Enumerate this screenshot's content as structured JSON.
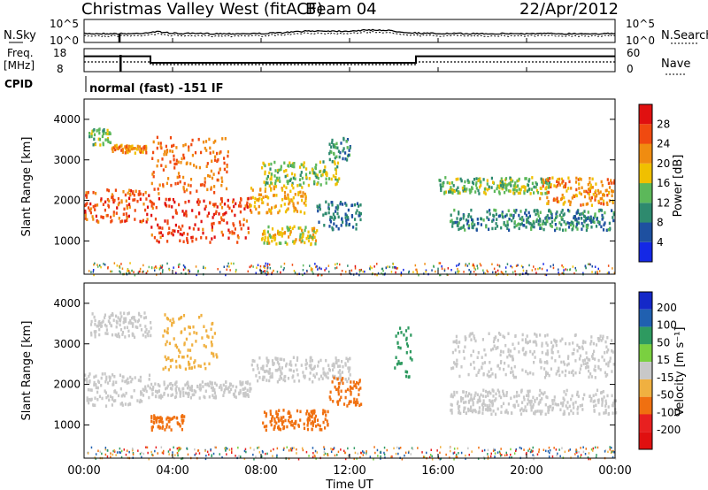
{
  "header": {
    "station": "Christmas Valley West (fitACF)",
    "beam": "Beam 04",
    "date": "22/Apr/2012"
  },
  "sky_panel": {
    "left_label": "N.Sky",
    "right_label": "N.Search",
    "left_ticks": [
      "10^5",
      "10^0"
    ],
    "right_ticks": [
      "10^5",
      "10^0"
    ]
  },
  "freq_panel": {
    "left_label_1": "Freq.",
    "left_label_2": "[MHz]",
    "right_label": "Nave",
    "left_ticks": [
      "18",
      "8"
    ],
    "right_ticks": [
      "60",
      "0"
    ],
    "freq_steps": [
      {
        "t0": 0.0,
        "t1": 1.7,
        "mhz": 15.2
      },
      {
        "t0": 1.7,
        "t1": 3.0,
        "mhz": 15.2
      },
      {
        "t0": 3.0,
        "t1": 15.0,
        "mhz": 11.5
      },
      {
        "t0": 15.0,
        "t1": 24.0,
        "mhz": 15.2
      }
    ]
  },
  "cpid": {
    "label": "CPID",
    "text": "normal (fast) -151 IF"
  },
  "power_panel": {
    "ylabel": "Slant Range [km]",
    "yticks": [
      "1000",
      "2000",
      "3000",
      "4000"
    ],
    "cbar_label": "Power [dB]",
    "cbar_ticks": [
      "4",
      "8",
      "12",
      "16",
      "20",
      "24",
      "28"
    ],
    "cbar_colors": [
      "#1428e6",
      "#1e50a0",
      "#2e8a6e",
      "#5cb85a",
      "#f0c000",
      "#f08c10",
      "#f04a10",
      "#e01010"
    ]
  },
  "velocity_panel": {
    "ylabel": "Slant Range [km]",
    "yticks": [
      "1000",
      "2000",
      "3000",
      "4000"
    ],
    "cbar_label": "Velocity [m s⁻¹]",
    "cbar_ticks": [
      "200",
      "100",
      "50",
      "15",
      "-15",
      "-50",
      "-100",
      "-200"
    ],
    "cbar_colors": [
      "#1428c8",
      "#2060b0",
      "#2e9a60",
      "#7ad040",
      "#c8c8c8",
      "#f0b040",
      "#f07010",
      "#e82020",
      "#e01010"
    ]
  },
  "xaxis": {
    "label": "Time UT",
    "ticks": [
      "00:00",
      "04:00",
      "08:00",
      "12:00",
      "16:00",
      "20:00",
      "00:00"
    ]
  },
  "chart_data": {
    "type": "heatmap",
    "x_range_hours": [
      0,
      24
    ],
    "y_range_km": [
      180,
      4500
    ],
    "power_bands": [
      {
        "t0": 0.0,
        "t1": 3.0,
        "r0": 1500,
        "r1": 2300,
        "db": 26
      },
      {
        "t0": 0.2,
        "t1": 1.2,
        "r0": 3400,
        "r1": 3800,
        "db": 14
      },
      {
        "t0": 1.2,
        "t1": 2.8,
        "r0": 3200,
        "r1": 3400,
        "db": 22
      },
      {
        "t0": 3.0,
        "t1": 7.5,
        "r0": 1000,
        "r1": 2100,
        "db": 27
      },
      {
        "t0": 3.0,
        "t1": 6.5,
        "r0": 2200,
        "r1": 3600,
        "db": 24
      },
      {
        "t0": 7.5,
        "t1": 10.0,
        "r0": 1700,
        "r1": 2400,
        "db": 20
      },
      {
        "t0": 8.0,
        "t1": 11.5,
        "r0": 2400,
        "r1": 3000,
        "db": 15
      },
      {
        "t0": 8.0,
        "t1": 10.5,
        "r0": 950,
        "r1": 1400,
        "db": 18
      },
      {
        "t0": 10.5,
        "t1": 12.5,
        "r0": 1300,
        "r1": 2000,
        "db": 8
      },
      {
        "t0": 11.0,
        "t1": 12.0,
        "r0": 3000,
        "r1": 3600,
        "db": 10
      },
      {
        "t0": 16.0,
        "t1": 21.0,
        "r0": 2200,
        "r1": 2600,
        "db": 14
      },
      {
        "t0": 16.5,
        "t1": 24.0,
        "r0": 1300,
        "r1": 1800,
        "db": 10
      },
      {
        "t0": 20.5,
        "t1": 24.0,
        "r0": 1900,
        "r1": 2600,
        "db": 22
      }
    ],
    "velocity_bands": [
      {
        "t0": 0.0,
        "t1": 3.0,
        "r0": 1500,
        "r1": 2300,
        "v": 0
      },
      {
        "t0": 0.2,
        "t1": 3.0,
        "r0": 3200,
        "r1": 3800,
        "v": 0
      },
      {
        "t0": 3.0,
        "t1": 7.5,
        "r0": 1700,
        "r1": 2100,
        "v": 0
      },
      {
        "t0": 3.0,
        "t1": 4.5,
        "r0": 900,
        "r1": 1300,
        "v": -60
      },
      {
        "t0": 3.5,
        "t1": 6.0,
        "r0": 2400,
        "r1": 3800,
        "v": -40
      },
      {
        "t0": 7.5,
        "t1": 12.0,
        "r0": 2100,
        "r1": 2700,
        "v": 0
      },
      {
        "t0": 8.0,
        "t1": 11.0,
        "r0": 900,
        "r1": 1400,
        "v": -80
      },
      {
        "t0": 11.0,
        "t1": 12.5,
        "r0": 1500,
        "r1": 2200,
        "v": -90
      },
      {
        "t0": 14.0,
        "t1": 14.8,
        "r0": 2200,
        "r1": 3500,
        "v": 40
      },
      {
        "t0": 16.5,
        "t1": 24.0,
        "r0": 2200,
        "r1": 3300,
        "v": 0
      },
      {
        "t0": 16.5,
        "t1": 24.0,
        "r0": 1300,
        "r1": 1900,
        "v": 0
      }
    ]
  }
}
